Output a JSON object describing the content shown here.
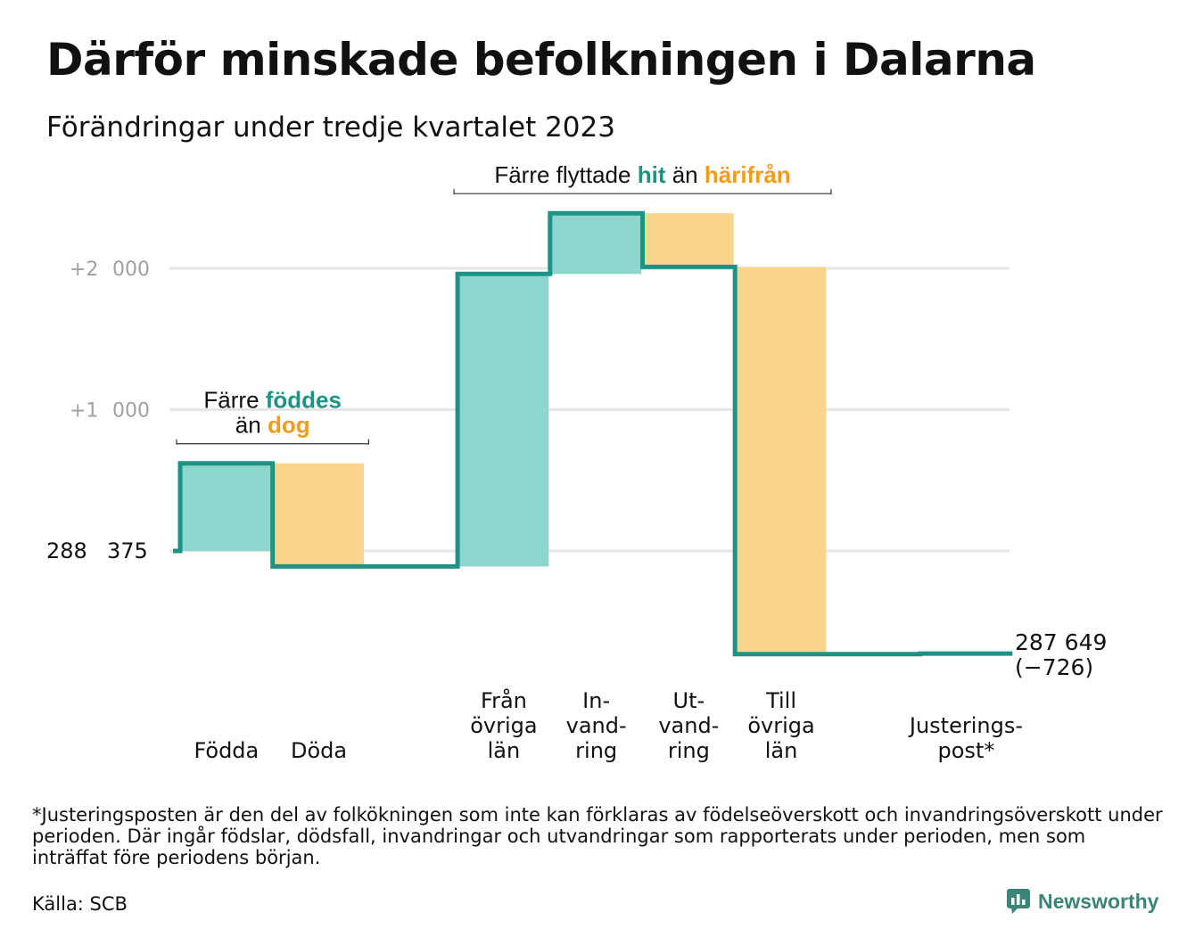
{
  "title": "Därför minskade befolkningen i Dalarna",
  "subtitle": "Förändringar under tredje kvartalet 2023",
  "chart_data": {
    "type": "waterfall",
    "start_value": 288375,
    "start_label": "288 375",
    "end_value": 287649,
    "end_label": "287 649",
    "end_change_label": "(−726)",
    "y_ticks": [
      {
        "value": 2000,
        "label": "+2 000"
      },
      {
        "value": 1000,
        "label": "+1 000"
      }
    ],
    "ylim": [
      -760,
      2400
    ],
    "grid": true,
    "colors": {
      "in": "#8dd5cd",
      "out": "#fbd48e",
      "line": "#1b9485",
      "grid": "#e6e6e6",
      "hit": "#1b9485",
      "away": "#f29d14"
    },
    "steps": [
      {
        "label": "Födda",
        "value": 620,
        "kind": "in"
      },
      {
        "label": "Döda",
        "value": -730,
        "kind": "out"
      },
      {
        "label": "",
        "value": 0,
        "kind": "none"
      },
      {
        "label": "Från\növriga\nlän",
        "value": 2070,
        "kind": "in"
      },
      {
        "label": "In-\nvand-\nring",
        "value": 430,
        "kind": "in"
      },
      {
        "label": "Ut-\nvand-\nring",
        "value": -380,
        "kind": "out"
      },
      {
        "label": "Till\növriga\nlän",
        "value": -2740,
        "kind": "out"
      },
      {
        "label": "",
        "value": 0,
        "kind": "none"
      },
      {
        "label": "Justerings-\npost*",
        "value": 4,
        "kind": "adjust"
      }
    ],
    "annotations": [
      {
        "lines": [
          [
            {
              "text": "Färre ",
              "role": "plain"
            },
            {
              "text": "föddes",
              "role": "hit"
            }
          ],
          [
            {
              "text": "än ",
              "role": "plain"
            },
            {
              "text": "dog",
              "role": "away"
            }
          ]
        ],
        "span": [
          0,
          1
        ]
      },
      {
        "lines": [
          [
            {
              "text": "Färre flyttade ",
              "role": "plain"
            },
            {
              "text": "hit",
              "role": "hit"
            },
            {
              "text": " än ",
              "role": "plain"
            },
            {
              "text": "härifrån",
              "role": "away"
            }
          ]
        ],
        "span": [
          3,
          6
        ]
      }
    ]
  },
  "footnote": "*Justeringsposten är den del av folkökningen som inte kan förklaras av födelseöverskott och invandringsöverskott under perioden. Där ingår födslar, dödsfall, invandringar och utvandringar som rapporterats under perioden, men som inträffat före periodens början.",
  "source": "Källa: SCB",
  "brand": "Newsworthy"
}
